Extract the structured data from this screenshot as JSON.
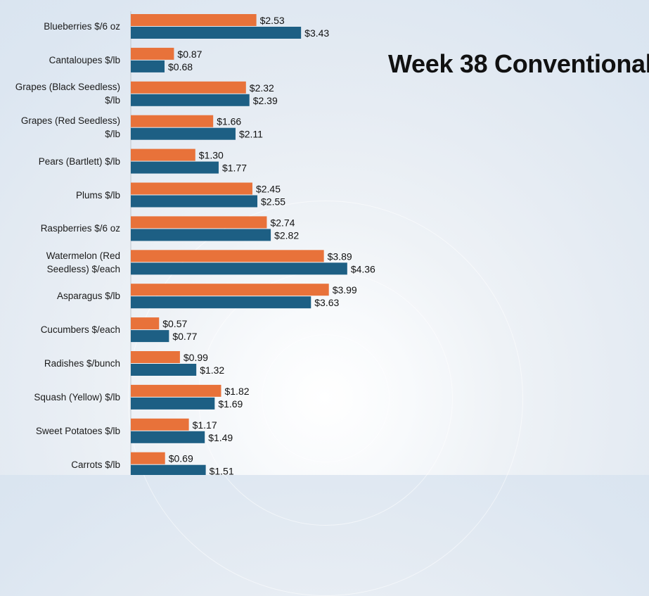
{
  "title": "Week 38 Conventional",
  "colors": {
    "series_a": "#E8723A",
    "series_b": "#1D5F84"
  },
  "chart_data": {
    "type": "bar",
    "orientation": "horizontal",
    "title": "Week 38 Conventional",
    "xlabel": "",
    "ylabel": "",
    "categories": [
      "Blueberries $/6 oz",
      "Cantaloupes $/lb",
      "Grapes (Black Seedless) $/lb",
      "Grapes (Red Seedless) $/lb",
      "Pears (Bartlett) $/lb",
      "Plums $/lb",
      "Raspberries $/6 oz",
      "Watermelon (Red Seedless) $/each",
      "Asparagus $/lb",
      "Cucumbers $/each",
      "Radishes $/bunch",
      "Squash (Yellow) $/lb",
      "Sweet Potatoes $/lb",
      "Carrots $/lb"
    ],
    "series": [
      {
        "values": [
          2.53,
          0.87,
          2.32,
          1.66,
          1.3,
          2.45,
          2.74,
          3.89,
          3.99,
          0.57,
          0.99,
          1.82,
          1.17,
          0.69
        ]
      },
      {
        "values": [
          3.43,
          0.68,
          2.39,
          2.11,
          1.77,
          2.55,
          2.82,
          4.36,
          3.63,
          0.77,
          1.32,
          1.69,
          1.49,
          1.51
        ]
      }
    ],
    "value_labels": [
      [
        "$2.53",
        "$0.87",
        "$2.32",
        "$1.66",
        "$1.30",
        "$2.45",
        "$2.74",
        "$3.89",
        "$3.99",
        "$0.57",
        "$0.99",
        "$1.82",
        "$1.17",
        "$0.69"
      ],
      [
        "$3.43",
        "$0.68",
        "$2.39",
        "$2.11",
        "$1.77",
        "$2.55",
        "$2.82",
        "$4.36",
        "$3.63",
        "$0.77",
        "$1.32",
        "$1.69",
        "$1.49",
        "$1.51"
      ]
    ],
    "category_label_lines": [
      [
        "Blueberries $/6 oz"
      ],
      [
        "Cantaloupes $/lb"
      ],
      [
        "Grapes (Black Seedless)",
        "$/lb"
      ],
      [
        "Grapes (Red Seedless)",
        "$/lb"
      ],
      [
        "Pears (Bartlett) $/lb"
      ],
      [
        "Plums $/lb"
      ],
      [
        "Raspberries $/6 oz"
      ],
      [
        "Watermelon (Red",
        "Seedless) $/each"
      ],
      [
        "Asparagus $/lb"
      ],
      [
        "Cucumbers $/each"
      ],
      [
        "Radishes $/bunch"
      ],
      [
        "Squash (Yellow) $/lb"
      ],
      [
        "Sweet Potatoes $/lb"
      ],
      [
        "Carrots $/lb"
      ]
    ],
    "xlim": [
      0,
      5
    ],
    "grid": false,
    "legend": "none"
  }
}
